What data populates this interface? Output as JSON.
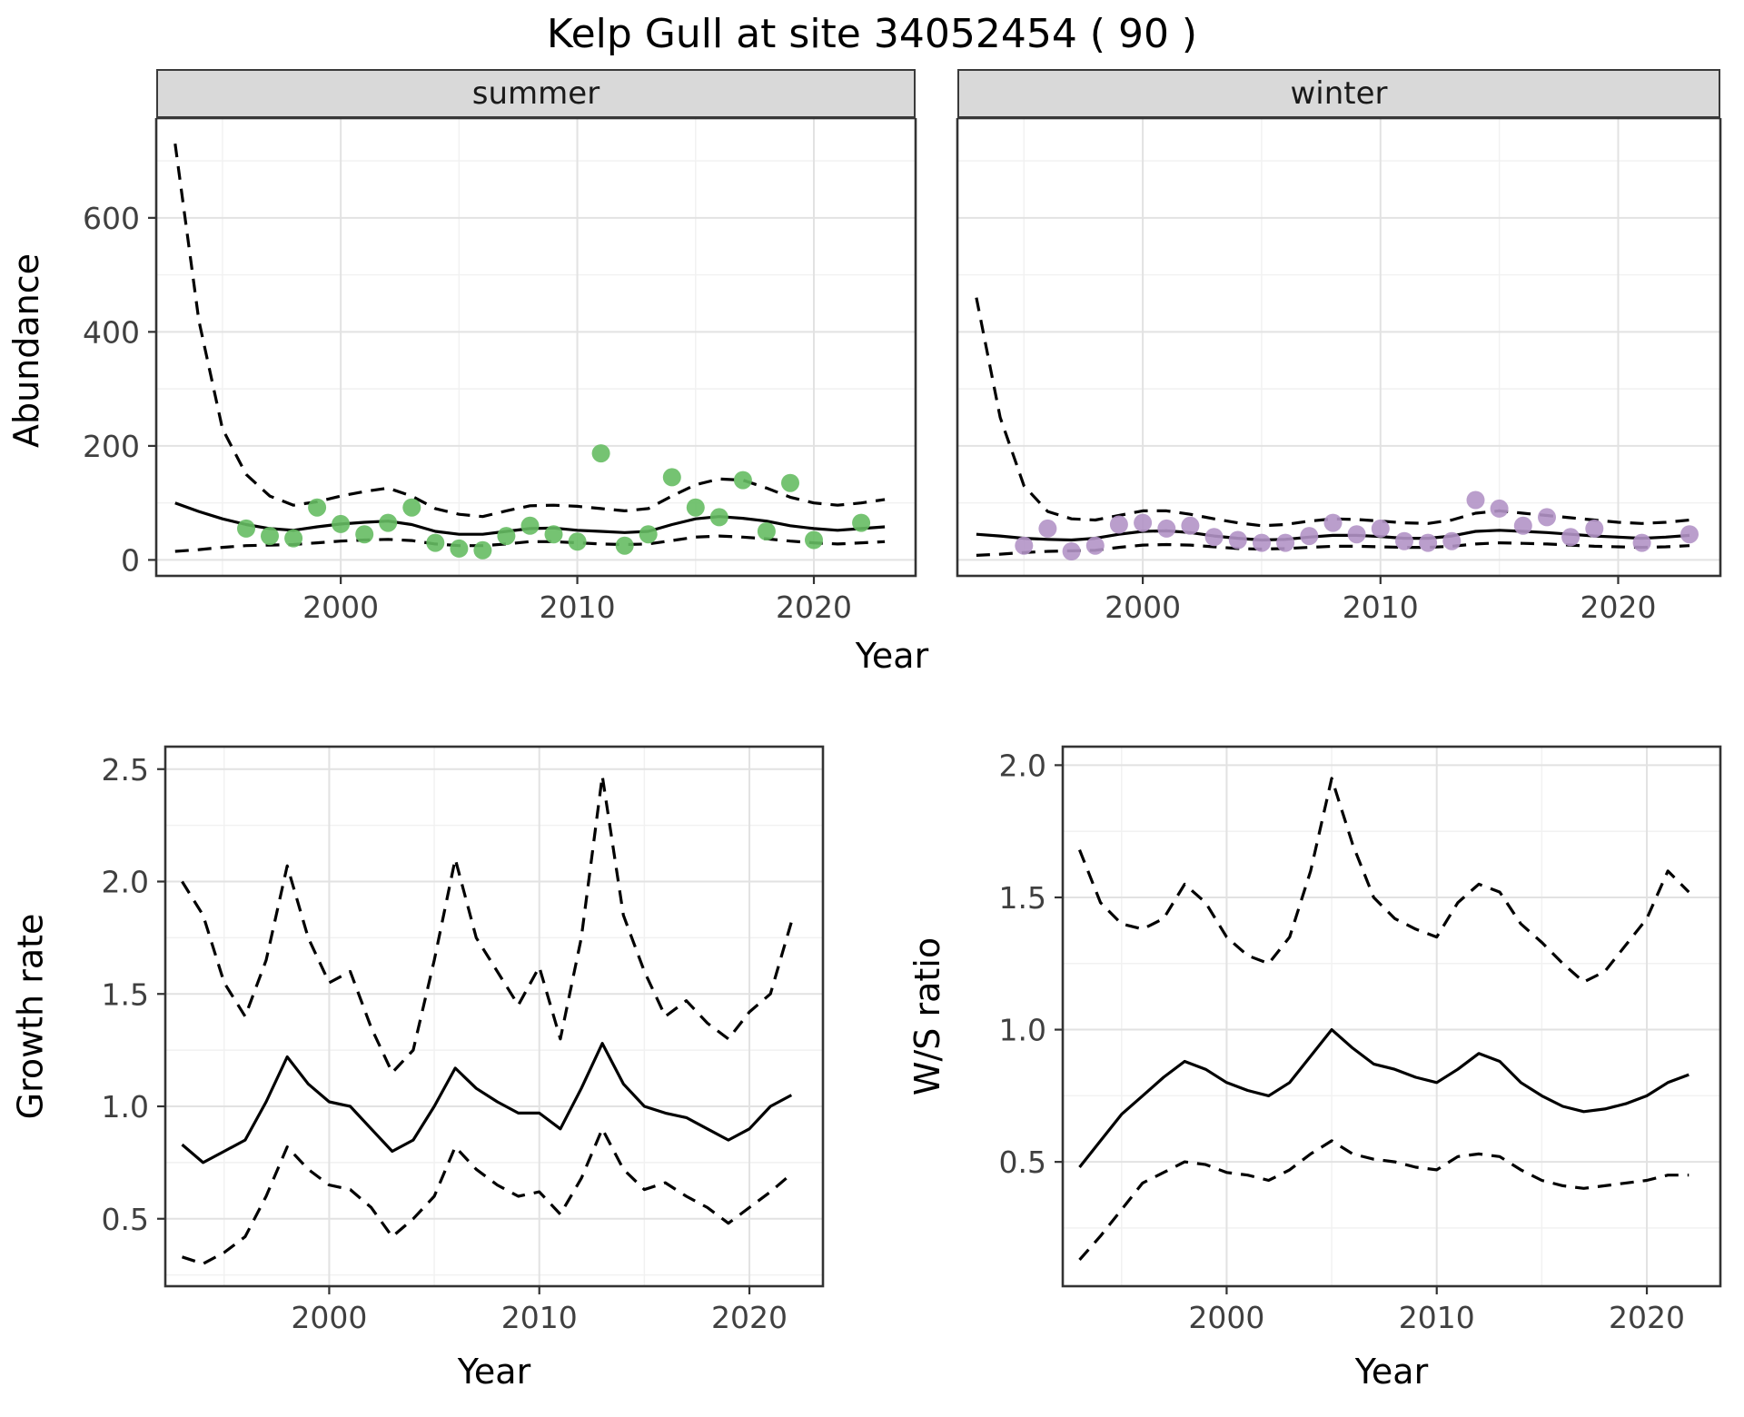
{
  "title": "Kelp Gull at site 34052454 ( 90 )",
  "labels": {
    "year": "Year",
    "abundance": "Abundance",
    "growth_rate": "Growth rate",
    "ws_ratio": "W/S ratio"
  },
  "facets": {
    "summer": "summer",
    "winter": "winter"
  },
  "colors": {
    "summer_point": "#66bd63",
    "winter_point": "#b294c7",
    "line": "#000000",
    "grid_major": "#e2e2e2",
    "grid_minor": "#f1f1f1",
    "border": "#333333",
    "tick_text": "#404040",
    "strip_bg": "#d9d9d9",
    "strip_text": "#1a1a1a"
  },
  "chart_data": [
    {
      "id": "abundance-summer",
      "type": "line+scatter",
      "facet_label": "summer",
      "xlabel": "Year",
      "ylabel": "Abundance",
      "xlim": [
        1992.2,
        2024.3
      ],
      "ylim": [
        -28,
        775
      ],
      "xticks": [
        2000,
        2010,
        2020
      ],
      "xticklabels": [
        "2000",
        "2010",
        "2020"
      ],
      "yticks": [
        0,
        200,
        400,
        600
      ],
      "yticklabels": [
        "0",
        "200",
        "400",
        "600"
      ],
      "minor_x": [
        1995,
        2005,
        2015
      ],
      "minor_y": [
        100,
        300,
        500,
        700
      ],
      "x": [
        1993,
        1994,
        1995,
        1996,
        1997,
        1998,
        1999,
        2000,
        2001,
        2002,
        2003,
        2004,
        2005,
        2006,
        2007,
        2008,
        2009,
        2010,
        2011,
        2012,
        2013,
        2014,
        2015,
        2016,
        2017,
        2018,
        2019,
        2020,
        2021,
        2022,
        2023
      ],
      "fit": [
        100,
        85,
        72,
        62,
        55,
        52,
        58,
        63,
        66,
        68,
        62,
        50,
        45,
        45,
        50,
        55,
        56,
        52,
        50,
        48,
        50,
        62,
        72,
        76,
        73,
        68,
        60,
        55,
        52,
        55,
        58
      ],
      "upper": [
        730,
        420,
        230,
        150,
        112,
        96,
        102,
        112,
        120,
        126,
        112,
        90,
        80,
        76,
        86,
        95,
        96,
        94,
        90,
        86,
        90,
        112,
        132,
        142,
        140,
        126,
        110,
        100,
        96,
        100,
        106
      ],
      "lower": [
        15,
        18,
        22,
        25,
        26,
        27,
        30,
        33,
        35,
        36,
        34,
        28,
        25,
        25,
        28,
        32,
        32,
        30,
        28,
        27,
        28,
        34,
        40,
        42,
        40,
        37,
        33,
        30,
        28,
        30,
        32
      ],
      "points": {
        "color_key": "summer_point",
        "x": [
          1996,
          1997,
          1998,
          1999,
          2000,
          2001,
          2002,
          2003,
          2004,
          2005,
          2006,
          2007,
          2008,
          2009,
          2010,
          2011,
          2012,
          2013,
          2014,
          2015,
          2016,
          2017,
          2018,
          2019,
          2020,
          2022
        ],
        "y": [
          55,
          42,
          38,
          92,
          63,
          45,
          65,
          92,
          30,
          20,
          17,
          42,
          60,
          45,
          32,
          187,
          25,
          45,
          145,
          92,
          75,
          140,
          50,
          135,
          35,
          65
        ]
      }
    },
    {
      "id": "abundance-winter",
      "type": "line+scatter",
      "facet_label": "winter",
      "xlabel": "Year",
      "ylabel": "Abundance",
      "xlim": [
        1992.2,
        2024.3
      ],
      "ylim": [
        -28,
        775
      ],
      "xticks": [
        2000,
        2010,
        2020
      ],
      "xticklabels": [
        "2000",
        "2010",
        "2020"
      ],
      "yticks": [
        0,
        200,
        400,
        600
      ],
      "yticklabels": [
        "0",
        "200",
        "400",
        "600"
      ],
      "minor_x": [
        1995,
        2005,
        2015
      ],
      "minor_y": [
        100,
        300,
        500,
        700
      ],
      "x": [
        1993,
        1994,
        1995,
        1996,
        1997,
        1998,
        1999,
        2000,
        2001,
        2002,
        2003,
        2004,
        2005,
        2006,
        2007,
        2008,
        2009,
        2010,
        2011,
        2012,
        2013,
        2014,
        2015,
        2016,
        2017,
        2018,
        2019,
        2020,
        2021,
        2022,
        2023
      ],
      "fit": [
        45,
        42,
        38,
        36,
        35,
        38,
        45,
        50,
        51,
        48,
        42,
        38,
        35,
        36,
        40,
        43,
        43,
        41,
        38,
        38,
        42,
        50,
        52,
        50,
        48,
        45,
        42,
        40,
        38,
        40,
        43
      ],
      "upper": [
        460,
        250,
        130,
        85,
        72,
        70,
        78,
        86,
        86,
        80,
        72,
        65,
        60,
        62,
        68,
        72,
        71,
        68,
        65,
        64,
        70,
        82,
        86,
        82,
        78,
        74,
        70,
        66,
        64,
        66,
        70
      ],
      "lower": [
        8,
        10,
        13,
        15,
        16,
        17,
        22,
        26,
        27,
        26,
        23,
        20,
        19,
        20,
        22,
        24,
        24,
        23,
        22,
        22,
        24,
        28,
        30,
        29,
        28,
        26,
        24,
        23,
        22,
        23,
        25
      ],
      "points": {
        "color_key": "winter_point",
        "x": [
          1995,
          1996,
          1997,
          1998,
          1999,
          2000,
          2001,
          2002,
          2003,
          2004,
          2005,
          2006,
          2007,
          2008,
          2009,
          2010,
          2011,
          2012,
          2013,
          2014,
          2015,
          2016,
          2017,
          2018,
          2019,
          2021,
          2023
        ],
        "y": [
          25,
          55,
          15,
          25,
          62,
          65,
          55,
          60,
          40,
          35,
          30,
          30,
          42,
          65,
          45,
          55,
          33,
          30,
          33,
          105,
          90,
          60,
          75,
          40,
          55,
          30,
          45
        ]
      }
    },
    {
      "id": "growth-rate",
      "type": "line",
      "xlabel": "Year",
      "ylabel": "Growth rate",
      "xlim": [
        1992.2,
        2023.5
      ],
      "ylim": [
        0.2,
        2.6
      ],
      "xticks": [
        2000,
        2010,
        2020
      ],
      "xticklabels": [
        "2000",
        "2010",
        "2020"
      ],
      "yticks": [
        0.5,
        1.0,
        1.5,
        2.0,
        2.5
      ],
      "yticklabels": [
        "0.5",
        "1.0",
        "1.5",
        "2.0",
        "2.5"
      ],
      "minor_x": [
        1995,
        2005,
        2015
      ],
      "minor_y": [
        0.25,
        0.75,
        1.25,
        1.75,
        2.25
      ],
      "x": [
        1993,
        1994,
        1995,
        1996,
        1997,
        1998,
        1999,
        2000,
        2001,
        2002,
        2003,
        2004,
        2005,
        2006,
        2007,
        2008,
        2009,
        2010,
        2011,
        2012,
        2013,
        2014,
        2015,
        2016,
        2017,
        2018,
        2019,
        2020,
        2021,
        2022
      ],
      "fit": [
        0.83,
        0.75,
        0.8,
        0.85,
        1.02,
        1.22,
        1.1,
        1.02,
        1.0,
        0.9,
        0.8,
        0.85,
        1.0,
        1.17,
        1.08,
        1.02,
        0.97,
        0.97,
        0.9,
        1.08,
        1.28,
        1.1,
        1.0,
        0.97,
        0.95,
        0.9,
        0.85,
        0.9,
        1.0,
        1.05
      ],
      "upper": [
        2.0,
        1.85,
        1.55,
        1.4,
        1.65,
        2.07,
        1.75,
        1.55,
        1.6,
        1.35,
        1.15,
        1.25,
        1.65,
        2.1,
        1.75,
        1.6,
        1.45,
        1.62,
        1.3,
        1.75,
        2.47,
        1.85,
        1.6,
        1.4,
        1.47,
        1.37,
        1.3,
        1.42,
        1.5,
        1.82
      ],
      "lower": [
        0.33,
        0.3,
        0.35,
        0.42,
        0.6,
        0.82,
        0.72,
        0.65,
        0.63,
        0.55,
        0.42,
        0.5,
        0.6,
        0.82,
        0.72,
        0.65,
        0.6,
        0.62,
        0.52,
        0.68,
        0.9,
        0.72,
        0.63,
        0.66,
        0.6,
        0.55,
        0.48,
        0.55,
        0.62,
        0.7
      ]
    },
    {
      "id": "ws-ratio",
      "type": "line",
      "xlabel": "Year",
      "ylabel": "W/S ratio",
      "xlim": [
        1992.2,
        2023.5
      ],
      "ylim": [
        0.03,
        2.07
      ],
      "xticks": [
        2000,
        2010,
        2020
      ],
      "xticklabels": [
        "2000",
        "2010",
        "2020"
      ],
      "yticks": [
        0.5,
        1.0,
        1.5,
        2.0
      ],
      "yticklabels": [
        "0.5",
        "1.0",
        "1.5",
        "2.0"
      ],
      "minor_x": [
        1995,
        2005,
        2015
      ],
      "minor_y": [
        0.25,
        0.75,
        1.25,
        1.75
      ],
      "x": [
        1993,
        1994,
        1995,
        1996,
        1997,
        1998,
        1999,
        2000,
        2001,
        2002,
        2003,
        2004,
        2005,
        2006,
        2007,
        2008,
        2009,
        2010,
        2011,
        2012,
        2013,
        2014,
        2015,
        2016,
        2017,
        2018,
        2019,
        2020,
        2021,
        2022
      ],
      "fit": [
        0.48,
        0.58,
        0.68,
        0.75,
        0.82,
        0.88,
        0.85,
        0.8,
        0.77,
        0.75,
        0.8,
        0.9,
        1.0,
        0.93,
        0.87,
        0.85,
        0.82,
        0.8,
        0.85,
        0.91,
        0.88,
        0.8,
        0.75,
        0.71,
        0.69,
        0.7,
        0.72,
        0.75,
        0.8,
        0.83
      ],
      "upper": [
        1.68,
        1.48,
        1.4,
        1.38,
        1.42,
        1.55,
        1.48,
        1.35,
        1.28,
        1.25,
        1.35,
        1.6,
        1.95,
        1.7,
        1.5,
        1.42,
        1.38,
        1.35,
        1.48,
        1.55,
        1.52,
        1.4,
        1.33,
        1.25,
        1.18,
        1.22,
        1.32,
        1.42,
        1.6,
        1.52
      ],
      "lower": [
        0.13,
        0.22,
        0.32,
        0.42,
        0.46,
        0.5,
        0.49,
        0.46,
        0.45,
        0.43,
        0.47,
        0.53,
        0.58,
        0.53,
        0.51,
        0.5,
        0.48,
        0.47,
        0.52,
        0.53,
        0.52,
        0.47,
        0.43,
        0.41,
        0.4,
        0.41,
        0.42,
        0.43,
        0.45,
        0.45
      ]
    }
  ]
}
